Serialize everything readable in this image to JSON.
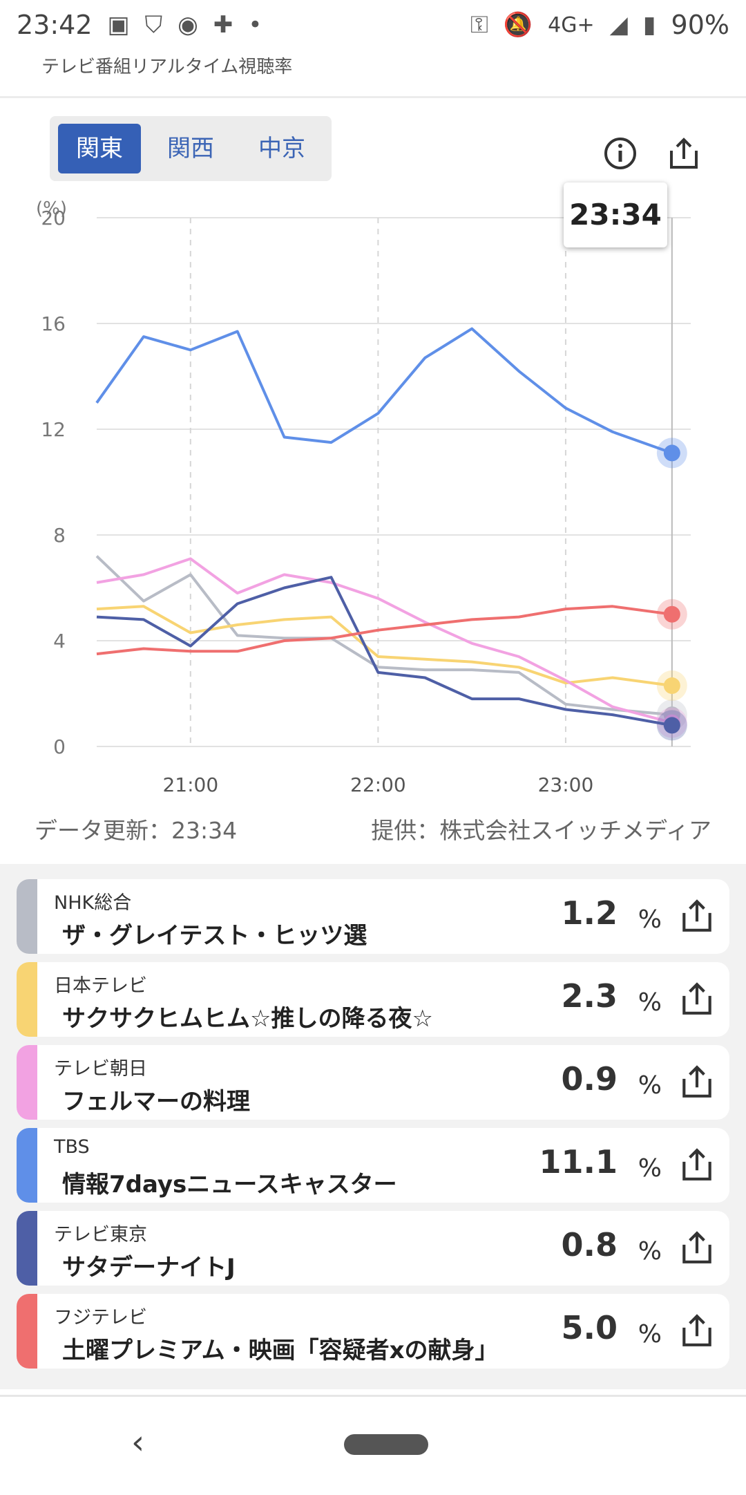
{
  "status_bar": {
    "time": "23:42",
    "network": "4G+",
    "battery": "90%",
    "icons": [
      "image-icon",
      "shield-icon",
      "notification-icon",
      "chat-plus-icon",
      "dot-icon",
      "key-icon",
      "bell-off-icon",
      "signal-icon",
      "battery-icon"
    ]
  },
  "app": {
    "title": "テレビ番組リアルタイム視聴率"
  },
  "region_tabs": [
    {
      "label": "関東",
      "active": true
    },
    {
      "label": "関西",
      "active": false
    },
    {
      "label": "中京",
      "active": false
    }
  ],
  "tooltip_time": "23:34",
  "footer": {
    "updated": "データ更新：23:34",
    "source": "提供：株式会社スイッチメディア"
  },
  "colors": {
    "nhk": "#b8bcc6",
    "ntv": "#f8d473",
    "ex": "#f2a2e2",
    "tbs": "#5f8fe8",
    "tx": "#4e5fa6",
    "cx": "#ef6f6f"
  },
  "chart_data": {
    "type": "line",
    "ylabel": "(%)",
    "ylim": [
      0,
      20
    ],
    "yticks": [
      "20",
      "16",
      "12",
      "8",
      "4",
      "0"
    ],
    "xticks": [
      "21:00",
      "22:00",
      "23:00"
    ],
    "x": [
      "20:30",
      "20:45",
      "21:00",
      "21:15",
      "21:30",
      "21:45",
      "22:00",
      "22:15",
      "22:30",
      "22:45",
      "23:00",
      "23:15",
      "23:34"
    ],
    "series": [
      {
        "name": "TBS",
        "color": "#5f8fe8",
        "values": [
          13.0,
          15.5,
          15.0,
          15.7,
          11.7,
          11.5,
          12.6,
          14.7,
          15.8,
          14.2,
          12.8,
          11.9,
          11.1
        ]
      },
      {
        "name": "NHK総合",
        "color": "#b8bcc6",
        "values": [
          7.2,
          5.5,
          6.5,
          4.2,
          4.1,
          4.1,
          3.0,
          2.9,
          2.9,
          2.8,
          1.6,
          1.4,
          1.2
        ]
      },
      {
        "name": "日本テレビ",
        "color": "#f8d473",
        "values": [
          5.2,
          5.3,
          4.3,
          4.6,
          4.8,
          4.9,
          3.4,
          3.3,
          3.2,
          3.0,
          2.4,
          2.6,
          2.3
        ]
      },
      {
        "name": "テレビ朝日",
        "color": "#f2a2e2",
        "values": [
          6.2,
          6.5,
          7.1,
          5.8,
          6.5,
          6.2,
          5.6,
          4.7,
          3.9,
          3.4,
          2.5,
          1.5,
          0.9
        ]
      },
      {
        "name": "テレビ東京",
        "color": "#4e5fa6",
        "values": [
          4.9,
          4.8,
          3.8,
          5.4,
          6.0,
          6.4,
          2.8,
          2.6,
          1.8,
          1.8,
          1.4,
          1.2,
          0.8
        ]
      },
      {
        "name": "フジテレビ",
        "color": "#ef6f6f",
        "values": [
          3.5,
          3.7,
          3.6,
          3.6,
          4.0,
          4.1,
          4.4,
          4.6,
          4.8,
          4.9,
          5.2,
          5.3,
          5.0
        ]
      }
    ]
  },
  "programs": [
    {
      "channel": "NHK総合",
      "title": "ザ・グレイテスト・ヒッツ選",
      "rating": "1.2",
      "unit": "%",
      "color": "#b8bcc6"
    },
    {
      "channel": "日本テレビ",
      "title": "サクサクヒムヒム☆推しの降る夜☆",
      "rating": "2.3",
      "unit": "%",
      "color": "#f8d473"
    },
    {
      "channel": "テレビ朝日",
      "title": "フェルマーの料理",
      "rating": "0.9",
      "unit": "%",
      "color": "#f2a2e2"
    },
    {
      "channel": "TBS",
      "title": "情報7daysニュースキャスター",
      "rating": "11.1",
      "unit": "%",
      "color": "#5f8fe8"
    },
    {
      "channel": "テレビ東京",
      "title": "サタデーナイトJ",
      "rating": "0.8",
      "unit": "%",
      "color": "#4e5fa6"
    },
    {
      "channel": "フジテレビ",
      "title": "土曜プレミアム・映画「容疑者xの献身」",
      "rating": "5.0",
      "unit": "%",
      "color": "#ef6f6f"
    }
  ]
}
